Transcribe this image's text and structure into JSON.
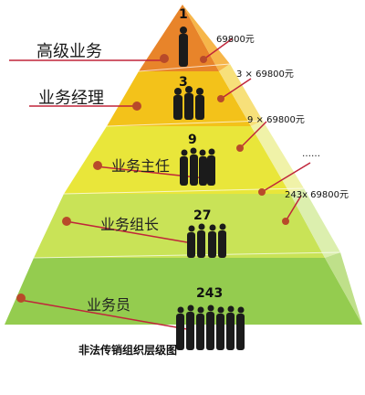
{
  "tiers": [
    {
      "label": "高级业务",
      "count": "1",
      "amount": "69800元"
    },
    {
      "label": "业务经理",
      "count": "3",
      "amount": "3 × 69800元"
    },
    {
      "label": "业务主任",
      "count": "9",
      "amount": "9 × 69800元"
    },
    {
      "label": "业务组长",
      "count": "27",
      "amount": "……"
    },
    {
      "label": "业务员",
      "count": "243",
      "amount": "243x 69800元"
    }
  ],
  "caption": "非法传销组织层级图",
  "colors": {
    "tier1": "#e8842a",
    "tier2": "#f3c21a",
    "tier3": "#e9e63a",
    "tier4": "#c9e357",
    "tier5": "#94cc4f",
    "side": "#d8eaa6",
    "line": "#c0253a",
    "dot": "#b84a2a",
    "person": "#1b1b1b"
  }
}
